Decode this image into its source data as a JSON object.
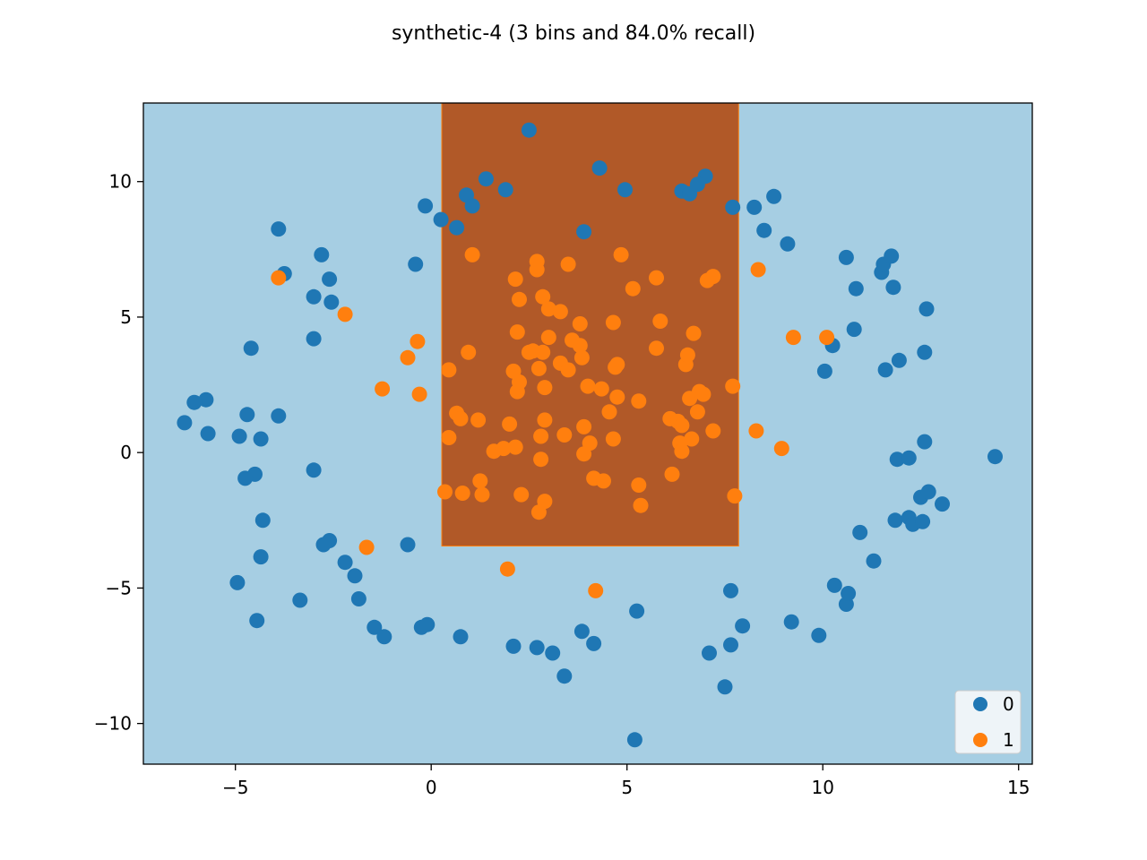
{
  "chart_data": {
    "type": "scatter",
    "title": "synthetic-4 (3 bins and 84.0% recall)",
    "xlabel": "",
    "ylabel": "",
    "xlim": [
      -7.35,
      15.35
    ],
    "ylim": [
      -11.5,
      12.9
    ],
    "xticks": [
      -5,
      0,
      5,
      10,
      15
    ],
    "yticks": [
      -10,
      -5,
      0,
      5,
      10
    ],
    "xtick_labels": [
      "−5",
      "0",
      "5",
      "10",
      "15"
    ],
    "ytick_labels": [
      "−10",
      "−5",
      "0",
      "5",
      "10"
    ],
    "grid": false,
    "legend_position": "lower-right",
    "background_region": {
      "label": "0",
      "color": "#a6cee3"
    },
    "regions": [
      {
        "label": "1",
        "x": [
          0.27,
          7.85
        ],
        "y": [
          -3.45,
          12.9
        ],
        "color": "#b15928",
        "edge_color": "#ff7f0e"
      }
    ],
    "series": [
      {
        "name": "0",
        "color": "#1f77b4",
        "points": [
          [
            2.5,
            11.9
          ],
          [
            4.3,
            10.5
          ],
          [
            1.4,
            10.1
          ],
          [
            7.0,
            10.2
          ],
          [
            4.95,
            9.7
          ],
          [
            6.4,
            9.65
          ],
          [
            6.6,
            9.55
          ],
          [
            6.8,
            9.9
          ],
          [
            1.9,
            9.7
          ],
          [
            0.9,
            9.5
          ],
          [
            1.05,
            9.1
          ],
          [
            -0.15,
            9.1
          ],
          [
            0.25,
            8.6
          ],
          [
            0.65,
            8.3
          ],
          [
            3.9,
            8.15
          ],
          [
            7.7,
            9.05
          ],
          [
            8.25,
            9.05
          ],
          [
            8.75,
            9.45
          ],
          [
            8.5,
            8.2
          ],
          [
            9.1,
            7.7
          ],
          [
            -3.9,
            8.25
          ],
          [
            -2.8,
            7.3
          ],
          [
            -3.75,
            6.6
          ],
          [
            -2.6,
            6.4
          ],
          [
            -3.0,
            5.75
          ],
          [
            -2.55,
            5.55
          ],
          [
            -0.4,
            6.95
          ],
          [
            -4.6,
            3.85
          ],
          [
            -3.0,
            4.2
          ],
          [
            -3.9,
            1.35
          ],
          [
            -5.75,
            1.95
          ],
          [
            -6.05,
            1.85
          ],
          [
            -6.3,
            1.1
          ],
          [
            -4.7,
            1.4
          ],
          [
            -5.7,
            0.7
          ],
          [
            -4.9,
            0.6
          ],
          [
            -4.35,
            0.5
          ],
          [
            -4.5,
            -0.8
          ],
          [
            -4.75,
            -0.95
          ],
          [
            -3.0,
            -0.65
          ],
          [
            -4.3,
            -2.5
          ],
          [
            -2.6,
            -3.25
          ],
          [
            -2.75,
            -3.4
          ],
          [
            -0.6,
            -3.4
          ],
          [
            -4.35,
            -3.85
          ],
          [
            -2.2,
            -4.05
          ],
          [
            -1.95,
            -4.55
          ],
          [
            -4.95,
            -4.8
          ],
          [
            -1.85,
            -5.4
          ],
          [
            -3.35,
            -5.45
          ],
          [
            -4.45,
            -6.2
          ],
          [
            -1.45,
            -6.45
          ],
          [
            -1.2,
            -6.8
          ],
          [
            -0.25,
            -6.45
          ],
          [
            -0.1,
            -6.35
          ],
          [
            0.75,
            -6.8
          ],
          [
            2.1,
            -7.15
          ],
          [
            2.7,
            -7.2
          ],
          [
            3.1,
            -7.4
          ],
          [
            3.4,
            -8.25
          ],
          [
            3.85,
            -6.6
          ],
          [
            4.15,
            -7.05
          ],
          [
            5.25,
            -5.85
          ],
          [
            5.2,
            -10.6
          ],
          [
            7.65,
            -5.1
          ],
          [
            7.65,
            -7.1
          ],
          [
            7.1,
            -7.4
          ],
          [
            7.95,
            -6.4
          ],
          [
            7.5,
            -8.65
          ],
          [
            9.2,
            -6.25
          ],
          [
            9.9,
            -6.75
          ],
          [
            10.3,
            -4.9
          ],
          [
            10.6,
            -5.6
          ],
          [
            10.65,
            -5.2
          ],
          [
            10.95,
            -2.95
          ],
          [
            11.3,
            -4.0
          ],
          [
            11.85,
            -2.5
          ],
          [
            12.2,
            -2.4
          ],
          [
            12.3,
            -2.65
          ],
          [
            12.55,
            -2.55
          ],
          [
            12.5,
            -1.65
          ],
          [
            12.7,
            -1.45
          ],
          [
            13.05,
            -1.9
          ],
          [
            11.9,
            -0.25
          ],
          [
            12.2,
            -0.2
          ],
          [
            12.6,
            0.4
          ],
          [
            14.4,
            -0.15
          ],
          [
            10.05,
            3.0
          ],
          [
            10.25,
            3.95
          ],
          [
            10.8,
            4.55
          ],
          [
            11.6,
            3.05
          ],
          [
            11.95,
            3.4
          ],
          [
            12.6,
            3.7
          ],
          [
            10.6,
            7.2
          ],
          [
            10.85,
            6.05
          ],
          [
            11.5,
            6.65
          ],
          [
            11.55,
            6.95
          ],
          [
            11.75,
            7.25
          ],
          [
            11.8,
            6.1
          ],
          [
            12.65,
            5.3
          ]
        ]
      },
      {
        "name": "1",
        "color": "#ff7f0e",
        "points": [
          [
            -3.9,
            6.45
          ],
          [
            -2.2,
            5.1
          ],
          [
            -0.35,
            4.1
          ],
          [
            -0.6,
            3.5
          ],
          [
            -1.25,
            2.35
          ],
          [
            -0.3,
            2.15
          ],
          [
            -1.65,
            -3.5
          ],
          [
            1.05,
            7.3
          ],
          [
            0.95,
            3.7
          ],
          [
            0.45,
            3.05
          ],
          [
            0.45,
            0.55
          ],
          [
            0.35,
            -1.45
          ],
          [
            0.65,
            1.45
          ],
          [
            0.75,
            1.25
          ],
          [
            0.8,
            -1.5
          ],
          [
            1.2,
            1.2
          ],
          [
            1.25,
            -1.05
          ],
          [
            1.3,
            -1.55
          ],
          [
            1.6,
            0.05
          ],
          [
            1.85,
            0.15
          ],
          [
            2.0,
            1.05
          ],
          [
            2.1,
            3.0
          ],
          [
            2.15,
            6.4
          ],
          [
            2.2,
            4.45
          ],
          [
            2.25,
            5.65
          ],
          [
            2.2,
            2.25
          ],
          [
            2.25,
            2.6
          ],
          [
            2.15,
            0.2
          ],
          [
            2.3,
            -1.55
          ],
          [
            1.95,
            -4.3
          ],
          [
            2.5,
            3.7
          ],
          [
            2.6,
            3.75
          ],
          [
            2.7,
            7.05
          ],
          [
            2.7,
            6.75
          ],
          [
            2.75,
            3.1
          ],
          [
            2.8,
            0.6
          ],
          [
            2.8,
            -0.25
          ],
          [
            2.85,
            3.7
          ],
          [
            2.85,
            5.75
          ],
          [
            2.9,
            2.4
          ],
          [
            2.9,
            1.2
          ],
          [
            2.9,
            -1.8
          ],
          [
            2.75,
            -2.2
          ],
          [
            3.0,
            5.3
          ],
          [
            3.0,
            4.25
          ],
          [
            3.3,
            5.2
          ],
          [
            3.3,
            3.3
          ],
          [
            3.4,
            0.65
          ],
          [
            3.5,
            6.95
          ],
          [
            3.5,
            3.05
          ],
          [
            3.6,
            4.15
          ],
          [
            3.8,
            4.75
          ],
          [
            3.8,
            3.95
          ],
          [
            3.85,
            3.5
          ],
          [
            3.9,
            0.95
          ],
          [
            3.9,
            -0.05
          ],
          [
            4.0,
            2.45
          ],
          [
            4.05,
            0.35
          ],
          [
            4.15,
            -0.95
          ],
          [
            4.2,
            -5.1
          ],
          [
            4.35,
            2.35
          ],
          [
            4.4,
            -1.05
          ],
          [
            4.55,
            1.5
          ],
          [
            4.65,
            4.8
          ],
          [
            4.65,
            0.5
          ],
          [
            4.7,
            3.15
          ],
          [
            4.75,
            3.25
          ],
          [
            4.75,
            2.05
          ],
          [
            4.85,
            7.3
          ],
          [
            5.15,
            6.05
          ],
          [
            5.3,
            1.9
          ],
          [
            5.3,
            -1.2
          ],
          [
            5.35,
            -1.95
          ],
          [
            5.75,
            6.45
          ],
          [
            5.75,
            3.85
          ],
          [
            5.85,
            4.85
          ],
          [
            6.1,
            1.25
          ],
          [
            6.15,
            -0.8
          ],
          [
            6.3,
            1.15
          ],
          [
            6.35,
            0.35
          ],
          [
            6.4,
            0.05
          ],
          [
            6.4,
            1.0
          ],
          [
            6.5,
            3.25
          ],
          [
            6.55,
            3.6
          ],
          [
            6.6,
            2.0
          ],
          [
            6.65,
            0.5
          ],
          [
            6.7,
            4.4
          ],
          [
            6.8,
            1.5
          ],
          [
            6.85,
            2.25
          ],
          [
            6.95,
            2.15
          ],
          [
            7.05,
            6.35
          ],
          [
            7.2,
            6.5
          ],
          [
            7.2,
            0.8
          ],
          [
            7.7,
            2.45
          ],
          [
            7.75,
            -1.6
          ],
          [
            8.3,
            0.8
          ],
          [
            8.35,
            6.75
          ],
          [
            8.95,
            0.15
          ],
          [
            9.25,
            4.25
          ],
          [
            10.1,
            4.25
          ]
        ]
      }
    ]
  }
}
